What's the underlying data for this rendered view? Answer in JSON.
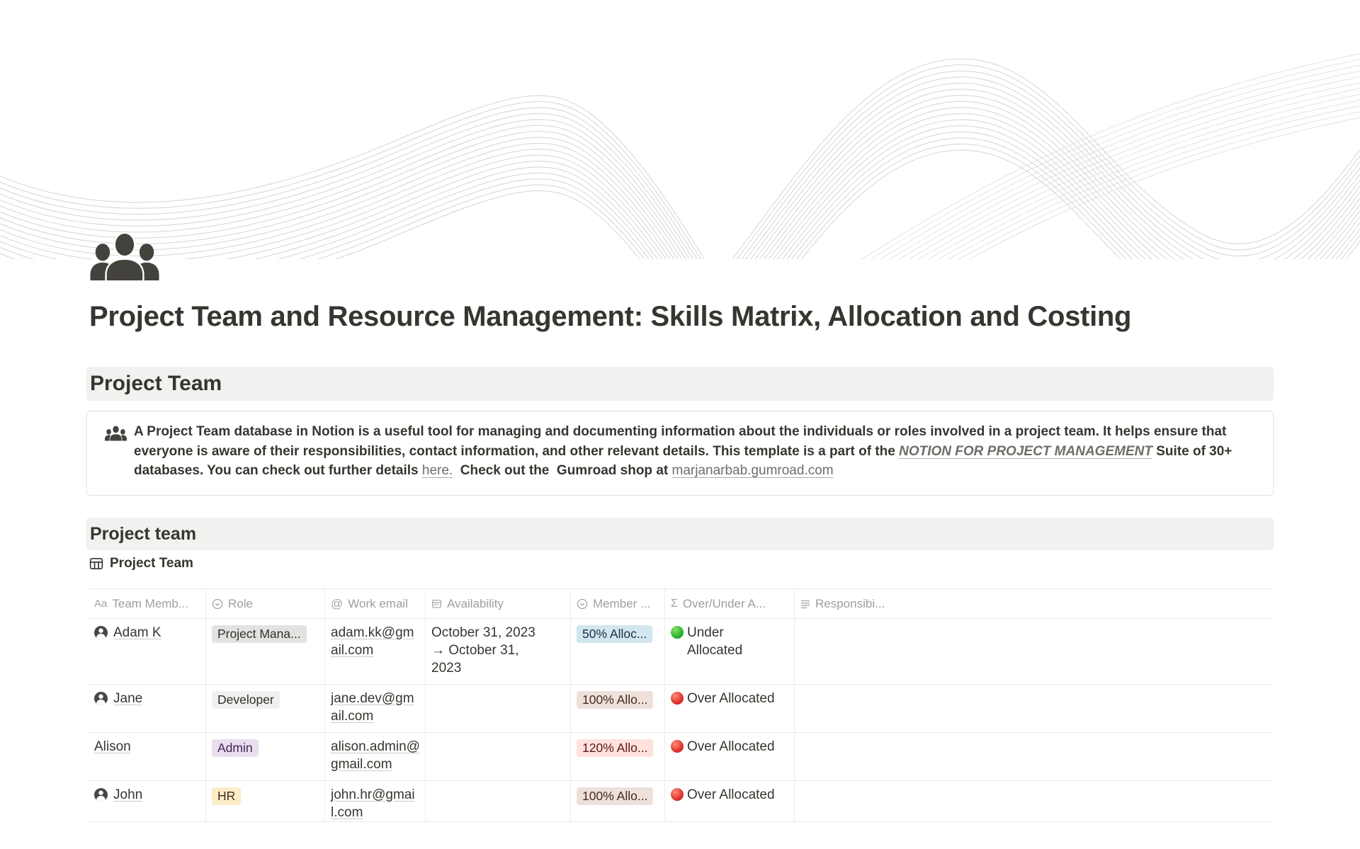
{
  "page": {
    "title": "Project Team and Resource Management: Skills Matrix, Allocation and Costing",
    "icon": "people-group",
    "cover": "gray-wave-lines"
  },
  "headings": {
    "section1": "Project Team",
    "section2": "Project team"
  },
  "callout": {
    "icon": "people-group",
    "segments": [
      {
        "text": "A Project Team database in Notion is a useful tool for managing and documenting information about the individuals or roles involved in a project team. It helps ensure that everyone is aware of their responsibilities, contact information, and other relevant details. This template is a part of the ",
        "type": "bold-text"
      },
      {
        "text": "NOTION FOR PROJECT MANAGEMENT",
        "type": "link-bold-italic-underline"
      },
      {
        "text": " Suite of 30+ databases. You can check out further details ",
        "type": "bold-text"
      },
      {
        "text": "here.",
        "type": "link-underline"
      },
      {
        "text": "  Check out the  Gumroad shop at ",
        "type": "bold-text"
      },
      {
        "text": "marjanarbab.gumroad.com",
        "type": "link-underline"
      }
    ]
  },
  "database": {
    "view_title": "Project Team",
    "columns": [
      {
        "label": "Team Memb...",
        "icon": "text-icon"
      },
      {
        "label": "Role",
        "icon": "select-icon"
      },
      {
        "label": "Work email",
        "icon": "email-at-icon"
      },
      {
        "label": "Availability",
        "icon": "calendar-icon"
      },
      {
        "label": "Member ...",
        "icon": "select-icon"
      },
      {
        "label": "Over/Under A...",
        "icon": "sum-icon"
      },
      {
        "label": "Responsibi...",
        "icon": "text-lines-icon"
      }
    ],
    "rows": [
      {
        "name": "Adam K",
        "has_avatar": true,
        "role": "Project Mana...",
        "role_color": "gray",
        "email": "adam.kk@gmail.com",
        "availability": "October 31, 2023 → October 31, 2023",
        "allocation": "50% Alloc...",
        "allocation_color": "blue",
        "status": "Under Allocated",
        "status_dot": "green",
        "responsibilities": ""
      },
      {
        "name": "Jane",
        "has_avatar": true,
        "role": "Developer",
        "role_color": "light-gray",
        "email": "jane.dev@gmail.com",
        "availability": "",
        "allocation": "100% Allo...",
        "allocation_color": "brown",
        "status": "Over Allocated",
        "status_dot": "red",
        "responsibilities": ""
      },
      {
        "name": "Alison",
        "has_avatar": false,
        "role": "Admin",
        "role_color": "purple",
        "email": "alison.admin@gmail.com",
        "availability": "",
        "allocation": "120% Allo...",
        "allocation_color": "red",
        "status": "Over Allocated",
        "status_dot": "red",
        "responsibilities": ""
      },
      {
        "name": "John",
        "has_avatar": true,
        "role": "HR",
        "role_color": "yellow",
        "email": "john.hr@gmail.com",
        "availability": "",
        "allocation": "100% Allo...",
        "allocation_color": "brown",
        "status": "Over Allocated",
        "status_dot": "red",
        "responsibilities": ""
      }
    ]
  },
  "colors": {
    "text": "#37352F",
    "muted_text": "#9F9E9B",
    "heading_bar_bg": "#F1F1EF",
    "wave_line": "#D6D6D6",
    "tag_gray_bg": "#E3E2E0",
    "tag_light_gray_bg": "#F1F0EF",
    "tag_purple_bg": "#E8DEEE",
    "tag_yellow_bg": "#FDECC8",
    "tag_blue_bg": "#D3E5EF",
    "tag_brown_bg": "#EEE0DA",
    "tag_red_bg": "#FFE2DD",
    "status_green": "#2EB82E",
    "status_red": "#E23A31"
  }
}
